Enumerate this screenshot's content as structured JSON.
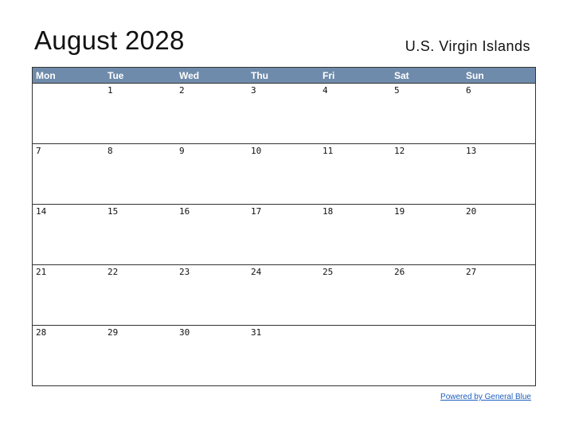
{
  "header": {
    "title": "August 2028",
    "region": "U.S. Virgin Islands"
  },
  "colors": {
    "header_bg": "#6f8bab",
    "header_text": "#ffffff",
    "grid_line": "#333333",
    "link": "#1f5fbf"
  },
  "calendar": {
    "weekdays": [
      "Mon",
      "Tue",
      "Wed",
      "Thu",
      "Fri",
      "Sat",
      "Sun"
    ],
    "weeks": [
      [
        "",
        "1",
        "2",
        "3",
        "4",
        "5",
        "6"
      ],
      [
        "7",
        "8",
        "9",
        "10",
        "11",
        "12",
        "13"
      ],
      [
        "14",
        "15",
        "16",
        "17",
        "18",
        "19",
        "20"
      ],
      [
        "21",
        "22",
        "23",
        "24",
        "25",
        "26",
        "27"
      ],
      [
        "28",
        "29",
        "30",
        "31",
        "",
        "",
        ""
      ]
    ]
  },
  "footer": {
    "link_text": "Powered by General Blue"
  }
}
